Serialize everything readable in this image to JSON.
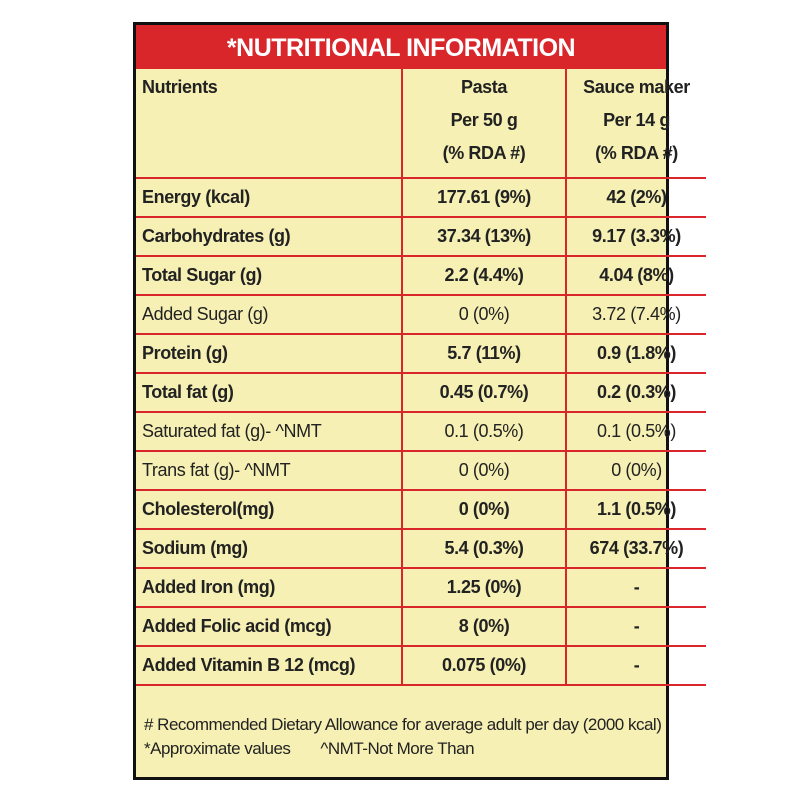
{
  "header": {
    "title": "*NUTRITIONAL INFORMATION"
  },
  "table": {
    "columns": [
      [
        "Nutrients"
      ],
      [
        "Pasta",
        "Per 50 g",
        "(% RDA #)"
      ],
      [
        "Sauce maker",
        "Per 14 g",
        "(% RDA #)"
      ]
    ],
    "rows": [
      {
        "bold": true,
        "cells": [
          "Energy (kcal)",
          "177.61 (9%)",
          "42 (2%)"
        ]
      },
      {
        "bold": true,
        "cells": [
          "Carbohydrates (g)",
          "37.34 (13%)",
          "9.17 (3.3%)"
        ]
      },
      {
        "bold": true,
        "cells": [
          "Total Sugar (g)",
          "2.2 (4.4%)",
          "4.04 (8%)"
        ]
      },
      {
        "bold": false,
        "cells": [
          "Added Sugar (g)",
          "0 (0%)",
          "3.72 (7.4%)"
        ]
      },
      {
        "bold": true,
        "cells": [
          "Protein (g)",
          "5.7 (11%)",
          "0.9 (1.8%)"
        ]
      },
      {
        "bold": true,
        "cells": [
          "Total fat (g)",
          "0.45 (0.7%)",
          "0.2 (0.3%)"
        ]
      },
      {
        "bold": false,
        "cells": [
          "Saturated fat (g)- ^NMT",
          "0.1 (0.5%)",
          "0.1 (0.5%)"
        ]
      },
      {
        "bold": false,
        "cells": [
          "Trans fat (g)- ^NMT",
          "0 (0%)",
          "0 (0%)"
        ]
      },
      {
        "bold": true,
        "cells": [
          "Cholesterol(mg)",
          "0 (0%)",
          "1.1 (0.5%)"
        ]
      },
      {
        "bold": true,
        "cells": [
          "Sodium (mg)",
          "5.4 (0.3%)",
          "674 (33.7%)"
        ]
      },
      {
        "bold": true,
        "cells": [
          "Added Iron (mg)",
          "1.25 (0%)",
          "-"
        ]
      },
      {
        "bold": true,
        "cells": [
          "Added Folic acid (mcg)",
          "8 (0%)",
          "-"
        ]
      },
      {
        "bold": true,
        "cells": [
          "Added Vitamin B 12 (mcg)",
          "0.075 (0%)",
          "-"
        ]
      }
    ]
  },
  "footer": {
    "lines": [
      "# Recommended Dietary Allowance for average adult per day (2000 kcal)",
      "*Approximate values",
      "^NMT-Not More Than"
    ]
  }
}
